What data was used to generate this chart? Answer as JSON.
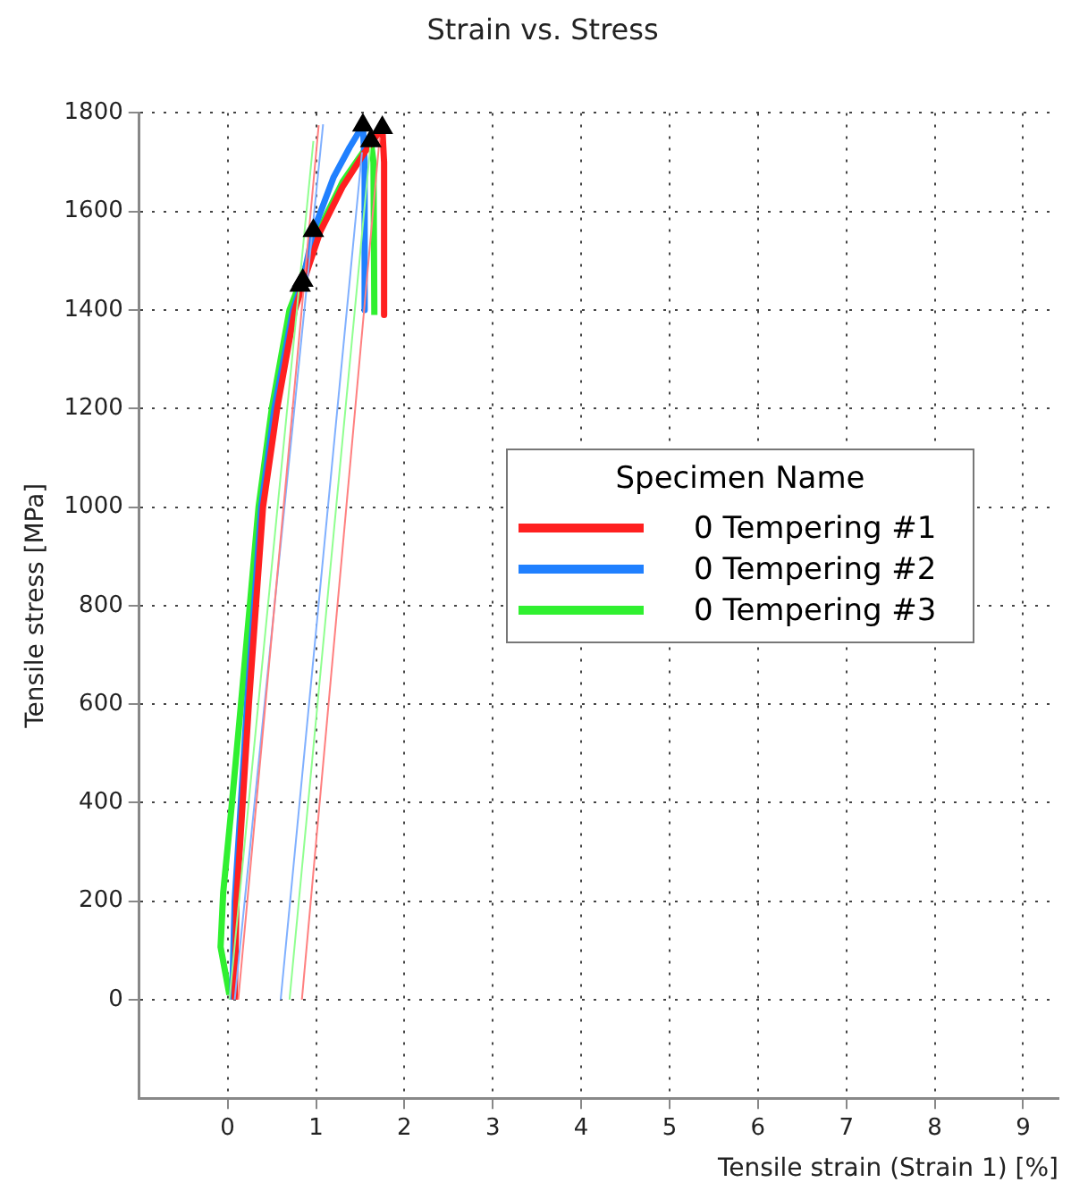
{
  "chart_data": {
    "type": "line",
    "title": "Strain vs. Stress",
    "xlabel": "Tensile strain (Strain 1) [%]",
    "ylabel": "Tensile stress [MPa]",
    "legend_title": "Specimen Name",
    "legend": "right",
    "grid": true,
    "line_style": "solid",
    "xlim": [
      -1,
      9.4
    ],
    "xticks": [
      0,
      1,
      2,
      3,
      4,
      5,
      6,
      7,
      8,
      9
    ],
    "ylim": [
      -200,
      1800
    ],
    "yticks": [
      0,
      200,
      400,
      600,
      800,
      1000,
      1200,
      1400,
      1600,
      1800
    ],
    "series": [
      {
        "type": "line",
        "color": "#ff8080",
        "x": [
          0.12,
          1.03
        ],
        "values": [
          0,
          1775
        ]
      },
      {
        "type": "line",
        "color": "#80b0ff",
        "x": [
          0.08,
          1.08
        ],
        "values": [
          0,
          1777
        ]
      },
      {
        "type": "line",
        "color": "#90ff90",
        "x": [
          0.02,
          0.97
        ],
        "values": [
          0,
          1743
        ]
      },
      {
        "type": "line",
        "color": "#ff8080",
        "x": [
          0.84,
          1.72
        ],
        "values": [
          0,
          1750
        ]
      },
      {
        "type": "line",
        "color": "#80b0ff",
        "x": [
          0.6,
          1.52
        ],
        "values": [
          0,
          1720
        ]
      },
      {
        "type": "line",
        "color": "#90ff90",
        "x": [
          0.7,
          1.62
        ],
        "values": [
          0,
          1743
        ]
      },
      {
        "type": "line",
        "name": "0 Tempering #1",
        "color": "#ff2020",
        "x": [
          0.08,
          0.1,
          0.17,
          0.24,
          0.32,
          0.4,
          0.56,
          0.76,
          0.9,
          1.05,
          1.3,
          1.55,
          1.75,
          1.77,
          1.77
        ],
        "values": [
          0,
          200,
          400,
          600,
          800,
          1000,
          1200,
          1400,
          1480,
          1560,
          1650,
          1720,
          1770,
          1700,
          1390
        ]
      },
      {
        "type": "line",
        "name": "0 Tempering #2",
        "color": "#2080ff",
        "x": [
          0.05,
          0.08,
          0.15,
          0.22,
          0.3,
          0.38,
          0.53,
          0.74,
          0.85,
          0.97,
          1.2,
          1.38,
          1.53,
          1.55,
          1.55
        ],
        "values": [
          0,
          200,
          400,
          600,
          800,
          1000,
          1200,
          1400,
          1460,
          1560,
          1670,
          1730,
          1775,
          1700,
          1400
        ]
      },
      {
        "type": "line",
        "name": "0 Tempering #3",
        "color": "#30f030",
        "x": [
          0.02,
          -0.08,
          -0.05,
          0.05,
          0.15,
          0.25,
          0.35,
          0.5,
          0.7,
          0.85,
          1.0,
          1.3,
          1.62,
          1.65,
          1.66
        ],
        "values": [
          10,
          107,
          218,
          402,
          598,
          798,
          1000,
          1200,
          1400,
          1470,
          1550,
          1660,
          1743,
          1700,
          1390
        ]
      },
      {
        "type": "scatter",
        "marker": "triangle",
        "color": "#000000",
        "x": [
          0.82,
          0.85,
          0.97,
          1.53,
          1.62,
          1.75
        ],
        "values": [
          1450,
          1460,
          1561,
          1775,
          1743,
          1770
        ]
      }
    ]
  }
}
